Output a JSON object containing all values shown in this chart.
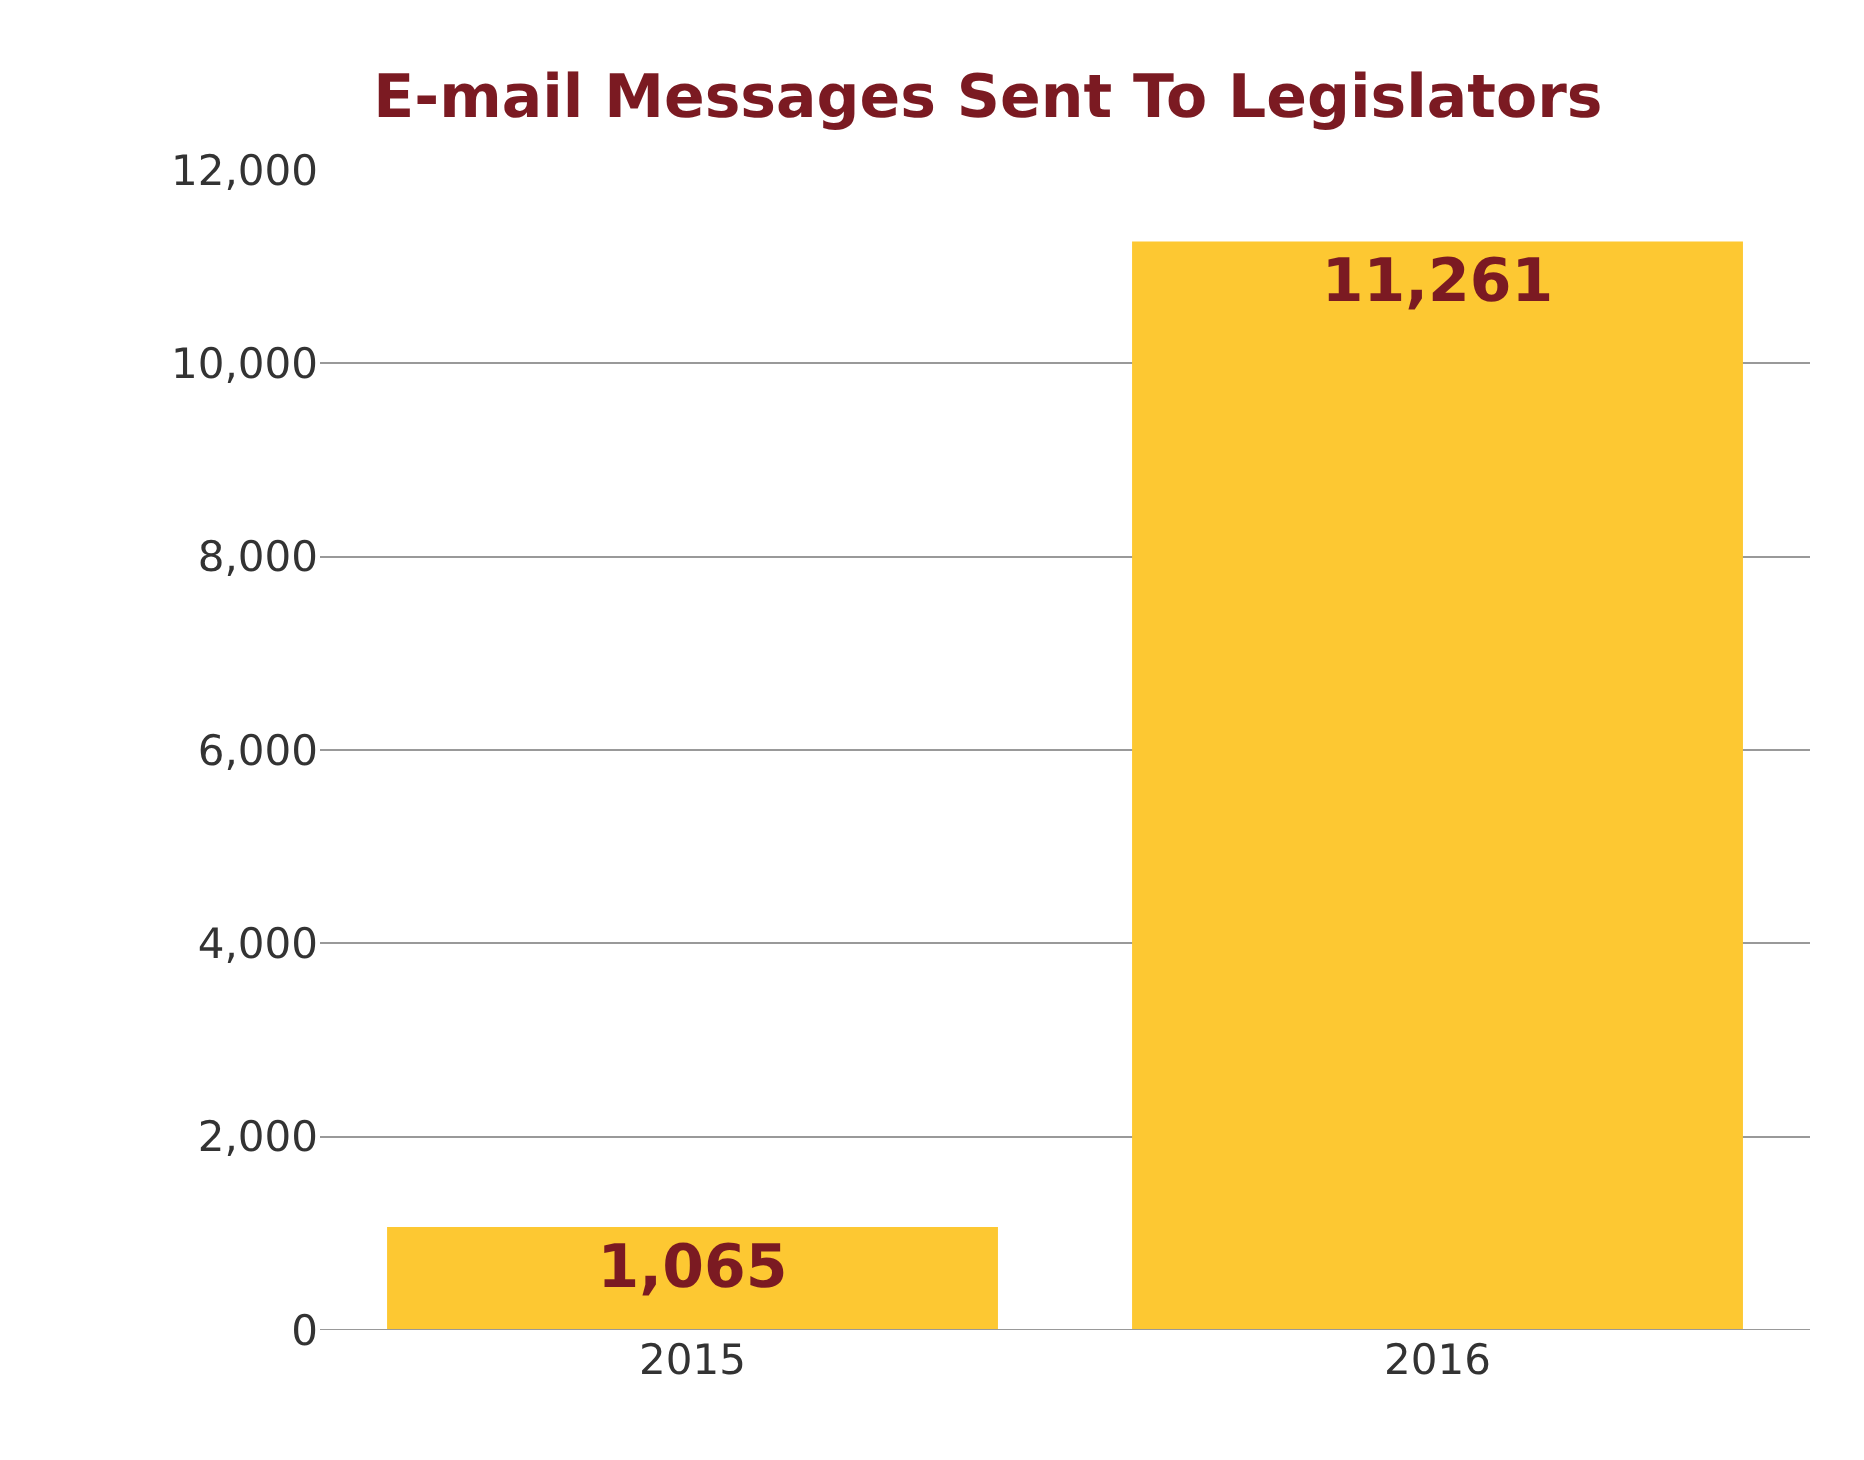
{
  "chart_data": {
    "type": "bar",
    "title": "E-mail Messages Sent To Legislators",
    "categories": [
      "2015",
      "2016"
    ],
    "values": [
      1065,
      11261
    ],
    "color": "#fdc832",
    "ylim": [
      0,
      12000
    ],
    "yticks": [
      0,
      {
        "value": 2000,
        "label": "2,000"
      },
      {
        "value": 4000,
        "label": "4,000"
      },
      {
        "value": 6000,
        "label": "6,000"
      },
      {
        "value": 8000,
        "label": "8,000"
      },
      {
        "value": 10000,
        "label": "10,000"
      },
      {
        "value": 12000,
        "label": "12,000"
      }
    ],
    "grid": "y",
    "value_labels": [
      "1,065",
      "11,261"
    ],
    "legend": false
  }
}
